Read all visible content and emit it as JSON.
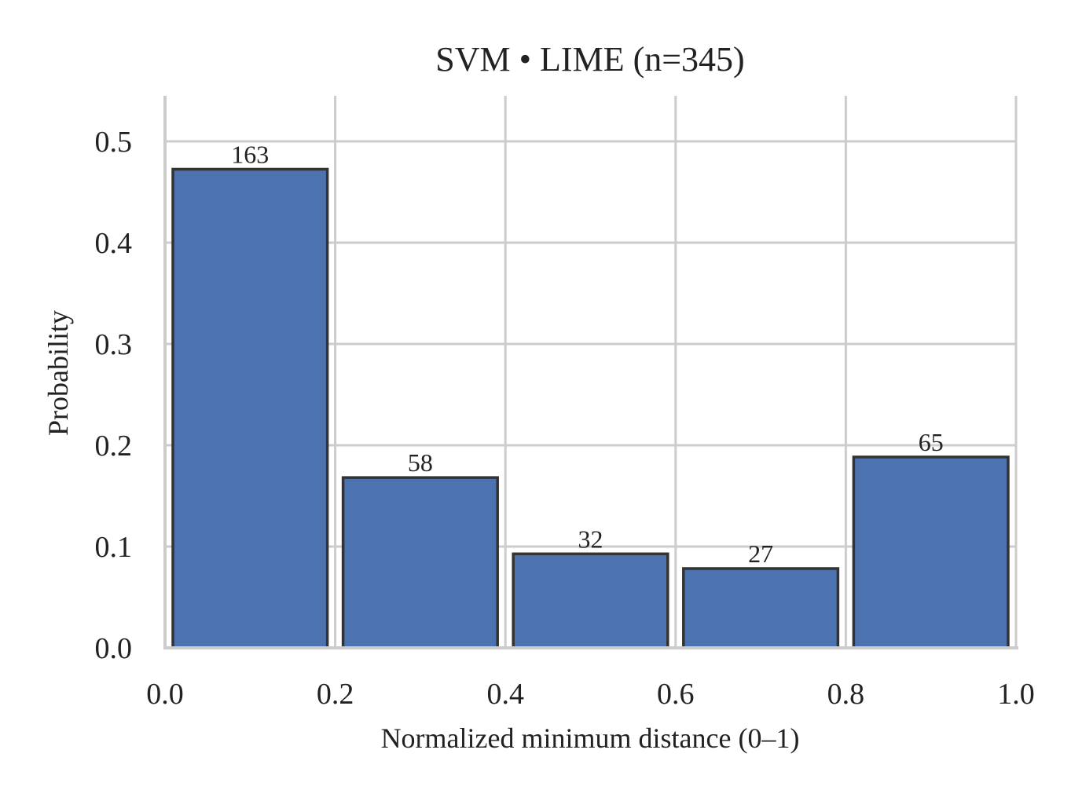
{
  "chart_data": {
    "type": "bar",
    "title": "SVM • LIME  (n=345)",
    "xlabel": "Normalized minimum distance (0–1)",
    "ylabel": "Probability",
    "xlim": [
      0.0,
      1.0
    ],
    "ylim": [
      0.0,
      0.545
    ],
    "x_ticks": [
      "0.0",
      "0.2",
      "0.4",
      "0.6",
      "0.8",
      "1.0"
    ],
    "y_ticks": [
      "0.0",
      "0.1",
      "0.2",
      "0.3",
      "0.4",
      "0.5"
    ],
    "bins": [
      {
        "start": 0.0,
        "end": 0.2,
        "value": 0.4725,
        "count_label": "163"
      },
      {
        "start": 0.2,
        "end": 0.4,
        "value": 0.1681,
        "count_label": "58"
      },
      {
        "start": 0.4,
        "end": 0.6,
        "value": 0.0928,
        "count_label": "32"
      },
      {
        "start": 0.6,
        "end": 0.8,
        "value": 0.0783,
        "count_label": "27"
      },
      {
        "start": 0.8,
        "end": 1.0,
        "value": 0.1884,
        "count_label": "65"
      }
    ],
    "grid": true,
    "legend": "none",
    "colors": {
      "bar": "#4c72b0",
      "bar_edge": "#333333",
      "grid": "#cccccc",
      "axis": "#cccccc"
    }
  }
}
